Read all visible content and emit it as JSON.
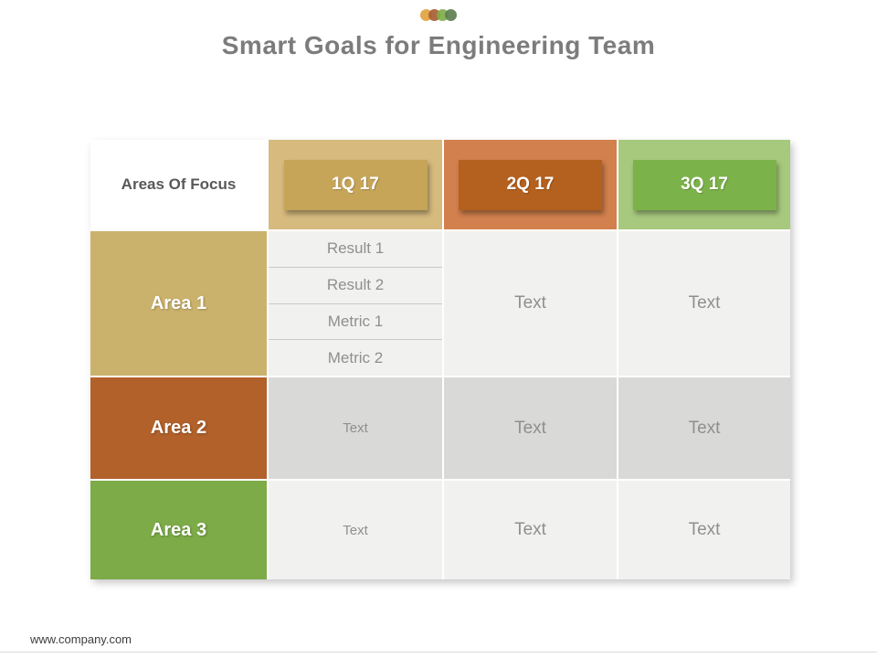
{
  "header": {
    "title": "Smart Goals for Engineering Team"
  },
  "decoration": {
    "dot_colors": [
      "#e2a23f",
      "#a85e33",
      "#7fae4a",
      "#5e7f52"
    ]
  },
  "table": {
    "corner_label": "Areas Of Focus",
    "quarters": [
      {
        "label": "1Q 17"
      },
      {
        "label": "2Q 17"
      },
      {
        "label": "3Q 17"
      }
    ],
    "areas": [
      {
        "label": "Area 1",
        "details": [
          "Result 1",
          "Result 2",
          "Metric 1",
          "Metric 2"
        ],
        "q2_text": "Text",
        "q3_text": "Text"
      },
      {
        "label": "Area 2",
        "q1_text": "Text",
        "q2_text": "Text",
        "q3_text": "Text"
      },
      {
        "label": "Area 3",
        "q1_text": "Text",
        "q2_text": "Text",
        "q3_text": "Text"
      }
    ],
    "colors": {
      "tan_header": "#d6ba7e",
      "tan_button": "#c6a559",
      "tan_area": "#cbb26c",
      "orange_header": "#d2804d",
      "orange_button": "#b4601e",
      "orange_area": "#b2612a",
      "green_header": "#a7c97e",
      "green_button": "#7cb24a",
      "green_area": "#7cab48",
      "row_light": "#f1f1ef",
      "row_dark": "#d9d9d8",
      "title_text": "#7c7c7c",
      "muted_text": "#8f8f8f"
    }
  },
  "footer": {
    "url": "www.company.com"
  }
}
